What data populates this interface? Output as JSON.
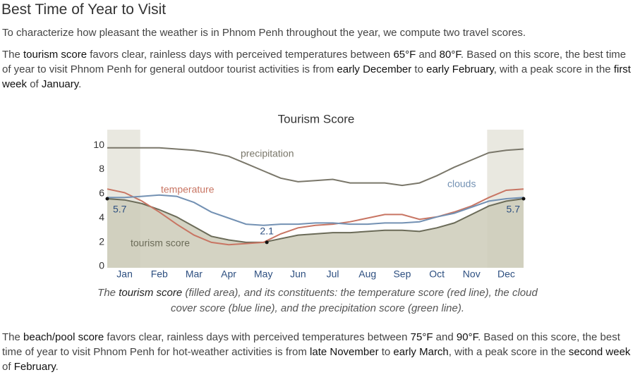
{
  "header": {
    "title": "Best Time of Year to Visit"
  },
  "paragraphs": [
    [
      "To characterize how pleasant the weather is in Phnom Penh throughout the year, we compute two travel scores."
    ],
    [
      "The ",
      "tourism score",
      " favors clear, rainless days with perceived temperatures between ",
      "65°F",
      " and ",
      "80°F",
      ". Based on this score, the best time of year to visit Phnom Penh for general outdoor tourist activities is from ",
      "early December",
      " to ",
      "early February",
      ", with a peak score in the ",
      "first week",
      " of ",
      "January",
      "."
    ]
  ],
  "chart_data": {
    "type": "area_line",
    "title": "Tourism Score",
    "x": [
      0,
      0.5,
      1,
      1.5,
      2,
      2.5,
      3,
      3.5,
      4,
      4.5,
      5,
      5.5,
      6,
      6.5,
      7,
      7.5,
      8,
      8.5,
      9,
      9.5,
      10,
      10.5,
      11,
      11.5,
      12
    ],
    "series": [
      {
        "name": "tourism score",
        "color": "#6b6b58",
        "fill": "#cdcbb8",
        "values": [
          5.7,
          5.6,
          5.3,
          4.8,
          4.2,
          3.4,
          2.6,
          2.3,
          2.1,
          2.1,
          2.4,
          2.7,
          2.8,
          2.9,
          2.9,
          3.0,
          3.1,
          3.1,
          3.0,
          3.3,
          3.7,
          4.4,
          5.1,
          5.5,
          5.7
        ]
      },
      {
        "name": "temperature",
        "color": "#c87563",
        "values": [
          6.5,
          6.2,
          5.5,
          4.6,
          3.6,
          2.7,
          2.1,
          1.9,
          2.0,
          2.1,
          2.8,
          3.3,
          3.5,
          3.6,
          3.8,
          4.1,
          4.4,
          4.4,
          4.0,
          4.2,
          4.6,
          5.1,
          5.8,
          6.4,
          6.5
        ]
      },
      {
        "name": "clouds",
        "color": "#7391b3",
        "values": [
          5.8,
          5.8,
          5.9,
          6.0,
          5.9,
          5.4,
          4.6,
          4.1,
          3.6,
          3.5,
          3.6,
          3.6,
          3.7,
          3.7,
          3.6,
          3.6,
          3.7,
          3.7,
          3.8,
          4.2,
          4.5,
          5.0,
          5.5,
          5.7,
          5.8
        ]
      },
      {
        "name": "precipitation",
        "color": "#7a776a",
        "values": [
          9.9,
          9.9,
          9.9,
          9.9,
          9.8,
          9.7,
          9.5,
          9.2,
          8.6,
          8.0,
          7.4,
          7.1,
          7.2,
          7.3,
          7.0,
          7.0,
          7.0,
          6.8,
          7.0,
          7.6,
          8.3,
          8.9,
          9.5,
          9.7,
          9.8
        ]
      }
    ],
    "highlight_ranges": [
      [
        0,
        0.95
      ],
      [
        10.95,
        12
      ]
    ],
    "annotations": [
      {
        "text": "5.7",
        "x": 0,
        "y": 5.7
      },
      {
        "text": "2.1",
        "x": 4.6,
        "y": 2.1
      },
      {
        "text": "5.7",
        "x": 12,
        "y": 5.7
      }
    ],
    "xlim": [
      0,
      12
    ],
    "xticks": [
      {
        "value": 0.5,
        "label": "Jan"
      },
      {
        "value": 1.5,
        "label": "Feb"
      },
      {
        "value": 2.5,
        "label": "Mar"
      },
      {
        "value": 3.5,
        "label": "Apr"
      },
      {
        "value": 4.5,
        "label": "May"
      },
      {
        "value": 5.5,
        "label": "Jun"
      },
      {
        "value": 6.5,
        "label": "Jul"
      },
      {
        "value": 7.5,
        "label": "Aug"
      },
      {
        "value": 8.5,
        "label": "Sep"
      },
      {
        "value": 9.5,
        "label": "Oct"
      },
      {
        "value": 10.5,
        "label": "Nov"
      },
      {
        "value": 11.5,
        "label": "Dec"
      }
    ],
    "ylim": [
      0,
      11.4
    ],
    "yticks": [
      0,
      2,
      4,
      6,
      8,
      10
    ],
    "grid": false,
    "caption": [
      "The ",
      "tourism score",
      " (filled area), and its constituents: the temperature score (red line), the cloud cover score (blue line), and the precipitation score (green line)."
    ]
  },
  "footer_paragraph": [
    "The ",
    "beach/pool score",
    " favors clear, rainless days with perceived temperatures between ",
    "75°F",
    " and ",
    "90°F",
    ". Based on this score, the best time of year to visit Phnom Penh for hot-weather activities is from ",
    "late November",
    " to ",
    "early March",
    ", with a peak score in the ",
    "second week",
    " of ",
    "February",
    "."
  ]
}
